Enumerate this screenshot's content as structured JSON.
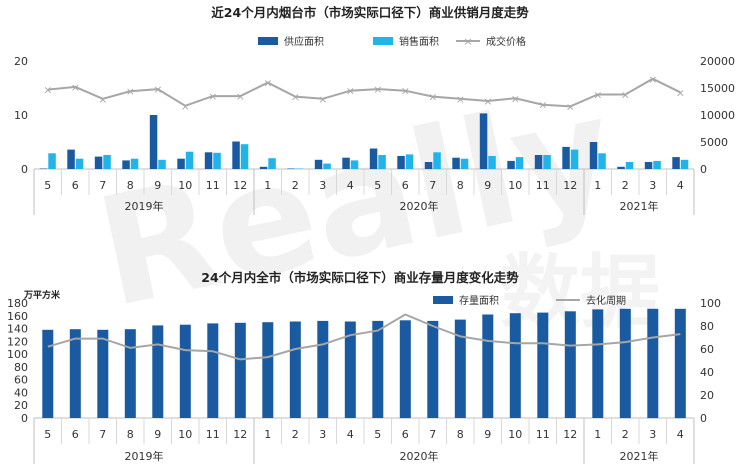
{
  "months": [
    "5",
    "6",
    "7",
    "8",
    "9",
    "10",
    "11",
    "12",
    "1",
    "2",
    "3",
    "4",
    "5",
    "6",
    "7",
    "8",
    "9",
    "10",
    "11",
    "12",
    "1",
    "2",
    "3",
    "4"
  ],
  "years": [
    "2019年",
    "2020年",
    "2021年"
  ],
  "colors": {
    "dark_blue": "#1a5aa0",
    "light_blue": "#20b4ea",
    "gray_line": "#a6a6a6",
    "axis_text": "#333333",
    "watermark": "#f0f0f0"
  },
  "watermark": {
    "latin": "Really",
    "cjk": "数据"
  },
  "chart_data": [
    {
      "type": "bar",
      "title": "近24个月内烟台市（市场实际口径下）商业供销月度走势",
      "legend": [
        "供应面积",
        "销售面积",
        "成交价格"
      ],
      "y_left_ticks": [
        "0",
        "10",
        "20"
      ],
      "y_right_ticks": [
        "0",
        "5000",
        "10000",
        "15000",
        "20000"
      ],
      "ylim_left": [
        0,
        20
      ],
      "ylim_right": [
        0,
        20000
      ],
      "grid": false,
      "legend_position": "top",
      "series": [
        {
          "name": "供应面积",
          "values": [
            0.1,
            3.6,
            2.3,
            1.6,
            10.0,
            1.9,
            3.1,
            5.1,
            0.4,
            0.1,
            1.7,
            2.1,
            3.8,
            2.4,
            1.3,
            2.1,
            10.3,
            1.5,
            2.6,
            4.1,
            5.0,
            0.4,
            1.3,
            2.2
          ]
        },
        {
          "name": "销售面积",
          "values": [
            2.9,
            1.9,
            2.6,
            1.9,
            1.7,
            3.2,
            3.0,
            4.6,
            2.0,
            0.1,
            1.0,
            1.6,
            2.6,
            2.7,
            3.1,
            1.9,
            2.4,
            2.2,
            2.6,
            3.6,
            2.9,
            1.3,
            1.5,
            1.7
          ]
        },
        {
          "name": "成交价格",
          "values": [
            14700,
            15200,
            13000,
            14400,
            14800,
            11700,
            13500,
            13500,
            16000,
            13400,
            13000,
            14500,
            14800,
            14500,
            13400,
            13000,
            12600,
            13100,
            11900,
            11600,
            13800,
            13800,
            16700,
            14200
          ]
        }
      ]
    },
    {
      "type": "bar",
      "title": "24个月内全市（市场实际口径下）商业存量月度变化走势",
      "unit_label": "万平方米",
      "legend": [
        "存量面积",
        "去化周期"
      ],
      "y_left_ticks": [
        "0",
        "20",
        "40",
        "60",
        "80",
        "100",
        "120",
        "140",
        "160",
        "180"
      ],
      "y_right_ticks": [
        "0",
        "20",
        "40",
        "60",
        "80",
        "100"
      ],
      "ylim_left": [
        0,
        180
      ],
      "ylim_right": [
        0,
        100
      ],
      "grid": false,
      "legend_position": "top-right",
      "series": [
        {
          "name": "存量面积",
          "values": [
            138,
            139,
            138,
            139,
            145,
            146,
            148,
            149,
            150,
            151,
            152,
            151,
            152,
            153,
            152,
            154,
            162,
            164,
            165,
            167,
            170,
            171,
            171,
            171
          ]
        },
        {
          "name": "去化周期",
          "values": [
            62,
            69,
            69,
            61,
            64,
            59,
            58,
            51,
            53,
            60,
            64,
            72,
            76,
            90,
            80,
            71,
            67,
            65,
            65,
            63,
            64,
            66,
            70,
            73
          ]
        }
      ]
    }
  ]
}
